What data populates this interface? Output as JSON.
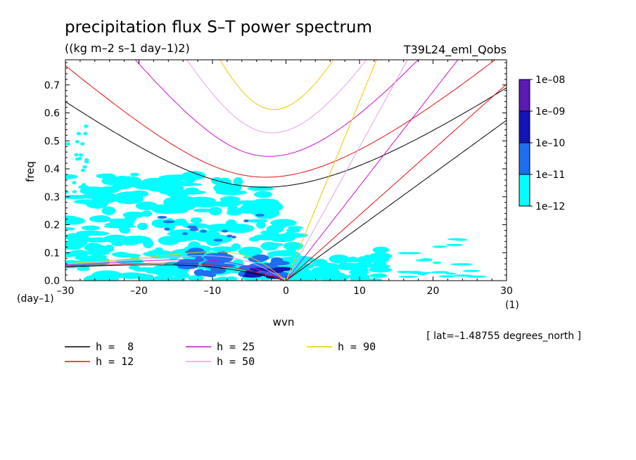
{
  "chart_data": {
    "type": "heatmap",
    "title": "precipitation flux S–T power spectrum",
    "units": "((kg m–2 s–1 day–1)2)",
    "dataset": "T39L24_eml_Qobs",
    "xlabel": "wvn",
    "x_unit": "(1)",
    "ylabel": "freq",
    "y_unit": "(day–1)",
    "xlim": [
      -30,
      30
    ],
    "ylim": [
      0,
      0.79
    ],
    "x_ticks": [
      "–30",
      "–20",
      "–10",
      "0",
      "10",
      "20",
      "30"
    ],
    "y_ticks": [
      "0.0",
      "0.1",
      "0.2",
      "0.3",
      "0.4",
      "0.5",
      "0.6",
      "0.7"
    ],
    "footer": "[ lat=–1.48755 degrees_north ]",
    "colorbar": {
      "labels": [
        "1e–08",
        "1e–09",
        "1e–10",
        "1e–11",
        "1e–12"
      ],
      "colors": [
        "#5a1ab4",
        "#1414b4",
        "#1e6ef0",
        "#00ffff"
      ]
    },
    "series": [
      {
        "name": "h =  8",
        "h": 8,
        "color": "#000000"
      },
      {
        "name": "h = 12",
        "h": 12,
        "color": "#e01010"
      },
      {
        "name": "h = 25",
        "h": 25,
        "color": "#cc10cc"
      },
      {
        "name": "h = 50",
        "h": 50,
        "color": "#e8a0e8"
      },
      {
        "name": "h = 90",
        "h": 90,
        "color": "#f0c800"
      }
    ]
  }
}
